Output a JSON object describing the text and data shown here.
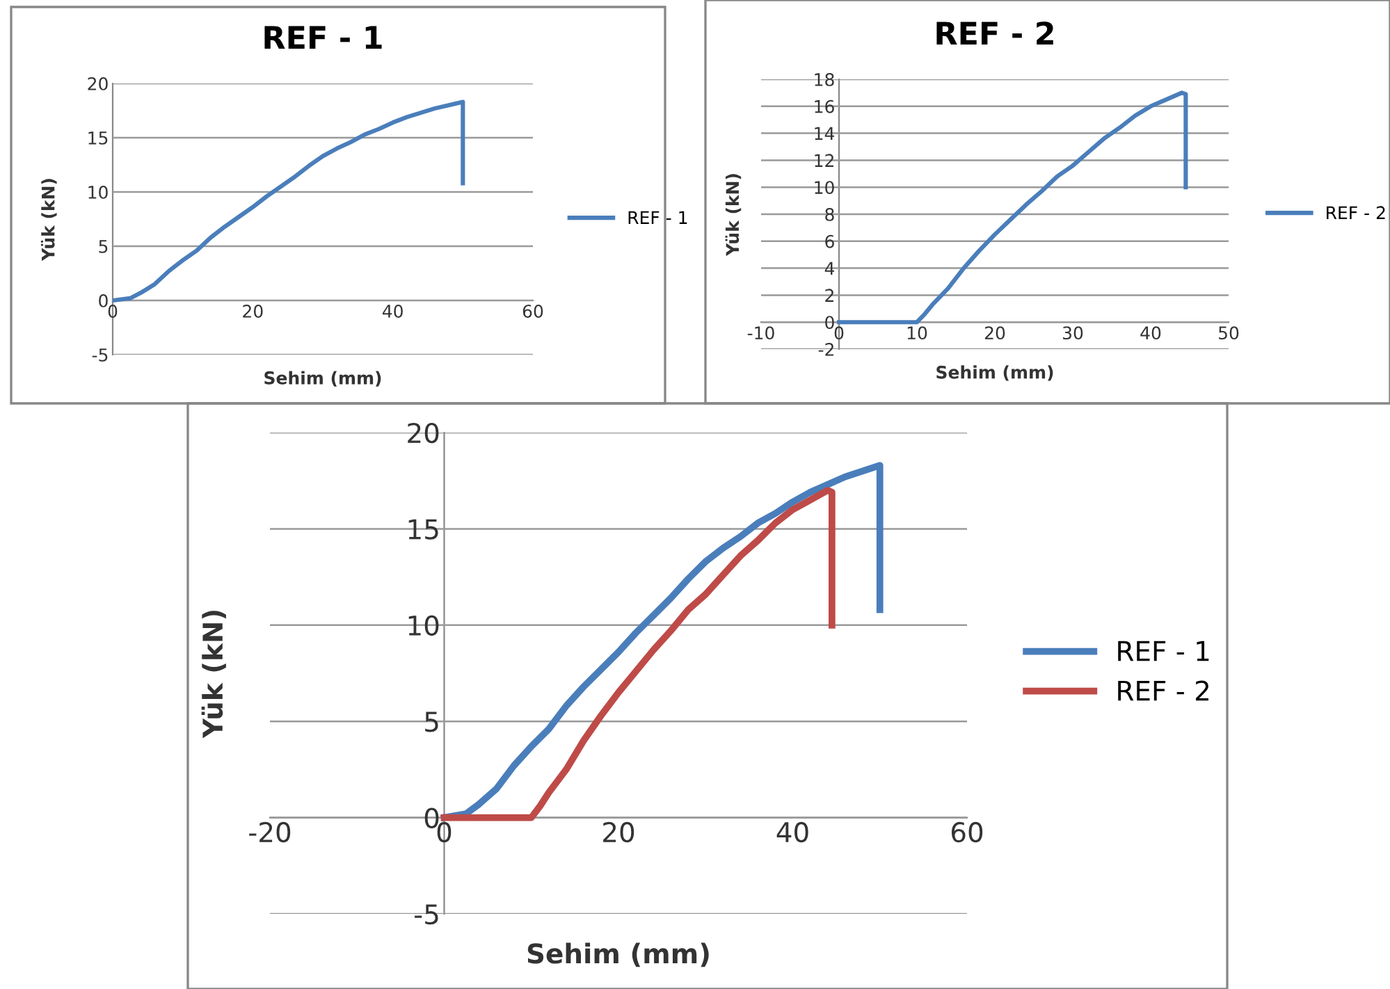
{
  "chart_data": [
    {
      "type": "line",
      "title": "REF - 1",
      "xlabel": "Sehim (mm)",
      "ylabel": "Yük (kN)",
      "xlim": [
        0,
        60
      ],
      "xticks": [
        0,
        20,
        40,
        60
      ],
      "ylim": [
        -5,
        20
      ],
      "yticks": [
        -5,
        0,
        5,
        10,
        15,
        20
      ],
      "grid": "y",
      "legend": "right",
      "marker": "none",
      "line_style": "solid",
      "series": [
        {
          "name": "REF - 1",
          "color": "#4a7ebb",
          "x": [
            0,
            2.5,
            4,
            6,
            8,
            10,
            12,
            14,
            16,
            18,
            20,
            22,
            24,
            26,
            28,
            30,
            32,
            34,
            36,
            38,
            40,
            42,
            44,
            46,
            48,
            50,
            50
          ],
          "values": [
            0,
            0.2,
            0.7,
            1.5,
            2.7,
            3.7,
            4.6,
            5.8,
            6.8,
            7.7,
            8.6,
            9.6,
            10.5,
            11.4,
            12.4,
            13.3,
            14.0,
            14.6,
            15.3,
            15.8,
            16.4,
            16.9,
            17.3,
            17.7,
            18.0,
            18.3,
            10.8
          ]
        }
      ]
    },
    {
      "type": "line",
      "title": "REF - 2",
      "xlabel": "Sehim (mm)",
      "ylabel": "Yük (kN)",
      "xlim": [
        -10,
        50
      ],
      "xticks": [
        -10,
        0,
        10,
        20,
        30,
        40,
        50
      ],
      "ylim": [
        -2,
        18
      ],
      "yticks": [
        -2,
        0,
        2,
        4,
        6,
        8,
        10,
        12,
        14,
        16,
        18
      ],
      "grid": "y",
      "legend": "right",
      "marker": "none",
      "line_style": "solid",
      "series": [
        {
          "name": "REF - 2",
          "color": "#4a7ebb",
          "x": [
            0,
            10,
            11,
            12,
            14,
            16,
            18,
            20,
            22,
            24,
            26,
            28,
            30,
            32,
            34,
            36,
            38,
            40,
            42,
            44,
            44.5,
            44.5
          ],
          "values": [
            0,
            0,
            0.6,
            1.3,
            2.5,
            4.0,
            5.3,
            6.5,
            7.6,
            8.7,
            9.7,
            10.8,
            11.6,
            12.6,
            13.6,
            14.4,
            15.3,
            16.0,
            16.5,
            17.0,
            16.9,
            10.0
          ]
        }
      ]
    },
    {
      "type": "line",
      "xlabel": "Sehim (mm)",
      "ylabel": "Yük (kN)",
      "xlim": [
        -20,
        60
      ],
      "xticks": [
        -20,
        0,
        20,
        40,
        60
      ],
      "ylim": [
        -5,
        20
      ],
      "yticks": [
        -5,
        0,
        5,
        10,
        15,
        20
      ],
      "grid": "y",
      "legend": "right",
      "marker": "none",
      "line_style": "solid",
      "series": [
        {
          "name": "REF - 1",
          "color": "#4a7ebb",
          "x": [
            0,
            2.5,
            4,
            6,
            8,
            10,
            12,
            14,
            16,
            18,
            20,
            22,
            24,
            26,
            28,
            30,
            32,
            34,
            36,
            38,
            40,
            42,
            44,
            46,
            48,
            50,
            50
          ],
          "values": [
            0,
            0.2,
            0.7,
            1.5,
            2.7,
            3.7,
            4.6,
            5.8,
            6.8,
            7.7,
            8.6,
            9.6,
            10.5,
            11.4,
            12.4,
            13.3,
            14.0,
            14.6,
            15.3,
            15.8,
            16.4,
            16.9,
            17.3,
            17.7,
            18.0,
            18.3,
            10.8
          ]
        },
        {
          "name": "REF - 2",
          "color": "#be4b48",
          "x": [
            0,
            10,
            11,
            12,
            14,
            16,
            18,
            20,
            22,
            24,
            26,
            28,
            30,
            32,
            34,
            36,
            38,
            40,
            42,
            44,
            44.5,
            44.5
          ],
          "values": [
            0,
            0,
            0.6,
            1.3,
            2.5,
            4.0,
            5.3,
            6.5,
            7.6,
            8.7,
            9.7,
            10.8,
            11.6,
            12.6,
            13.6,
            14.4,
            15.3,
            16.0,
            16.5,
            17.0,
            16.9,
            10.0
          ]
        }
      ]
    }
  ]
}
